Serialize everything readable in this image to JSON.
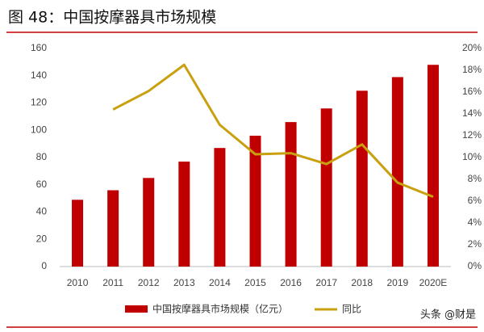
{
  "chart_data": {
    "type": "bar-line",
    "title": "图 48：中国按摩器具市场规模",
    "categories": [
      "2010",
      "2011",
      "2012",
      "2013",
      "2014",
      "2015",
      "2016",
      "2017",
      "2018",
      "2019",
      "2020E"
    ],
    "series": [
      {
        "name": "中国按摩器具市场规模（亿元）",
        "type": "bar",
        "color": "#c00000",
        "values": [
          49,
          56,
          65,
          77,
          87,
          96,
          106,
          116,
          129,
          139,
          148
        ]
      },
      {
        "name": "同比",
        "type": "line",
        "axis": "y2",
        "color": "#c9a010",
        "values": [
          null,
          14.4,
          16.1,
          18.5,
          13.0,
          10.3,
          10.4,
          9.4,
          11.2,
          7.7,
          6.4
        ]
      }
    ],
    "ylim": [
      0,
      160
    ],
    "yticks": [
      0,
      20,
      40,
      60,
      80,
      100,
      120,
      140,
      160
    ],
    "y2lim": [
      0,
      20
    ],
    "y2ticks": [
      {
        "value": 0,
        "label": "0%"
      },
      {
        "value": 2,
        "label": "2%"
      },
      {
        "value": 4,
        "label": "4%"
      },
      {
        "value": 6,
        "label": "6%"
      },
      {
        "value": 8,
        "label": "8%"
      },
      {
        "value": 10,
        "label": "10%"
      },
      {
        "value": 12,
        "label": "12%"
      },
      {
        "value": 14,
        "label": "14%"
      },
      {
        "value": 16,
        "label": "16%"
      },
      {
        "value": 18,
        "label": "18%"
      },
      {
        "value": 20,
        "label": "20%"
      }
    ],
    "grid": false,
    "legend": "bottom",
    "watermark": "头条 @财是"
  }
}
